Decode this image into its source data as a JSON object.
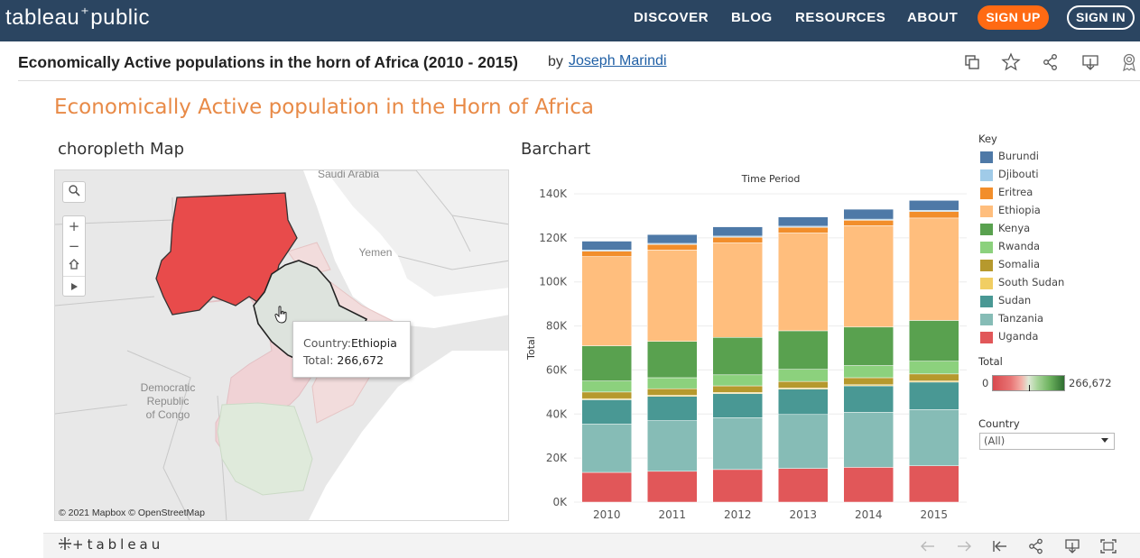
{
  "nav": {
    "logo_left": "tableau",
    "logo_right": "public",
    "links": [
      "DISCOVER",
      "BLOG",
      "RESOURCES",
      "ABOUT"
    ],
    "signup": "SIGN UP",
    "signin": "SIGN IN"
  },
  "viz": {
    "title": "Economically Active populations in the horn of Africa (2010 - 2015)",
    "by": "by",
    "author": "Joseph Marindi"
  },
  "dashboard": {
    "title": "Economically Active population in the Horn of Africa",
    "map_title": "choropleth Map",
    "bar_title": "Barchart"
  },
  "map": {
    "copyright": "© 2021 Mapbox  © OpenStreetMap",
    "labels": {
      "saudi": "Saudi Arabia",
      "yemen": "Yemen",
      "drc": "Democratic\nRepublic\nof Congo"
    },
    "tooltip": {
      "country_label": "Country:",
      "country_value": "Ethiopia",
      "total_label": "Total:",
      "total_value": "266,672"
    }
  },
  "legend": {
    "key_title": "Key",
    "items": [
      {
        "name": "Burundi",
        "color": "#4e79a7"
      },
      {
        "name": "Djibouti",
        "color": "#a0cbe8"
      },
      {
        "name": "Eritrea",
        "color": "#f28e2b"
      },
      {
        "name": "Ethiopia",
        "color": "#ffbe7d"
      },
      {
        "name": "Kenya",
        "color": "#59a14f"
      },
      {
        "name": "Rwanda",
        "color": "#8cd17d"
      },
      {
        "name": "Somalia",
        "color": "#b6992d"
      },
      {
        "name": "South Sudan",
        "color": "#f1ce63"
      },
      {
        "name": "Sudan",
        "color": "#499894"
      },
      {
        "name": "Tanzania",
        "color": "#86bcb6"
      },
      {
        "name": "Uganda",
        "color": "#e15759"
      }
    ],
    "total_title": "Total",
    "total_min": "0",
    "total_max": "266,672",
    "country_title": "Country",
    "country_value": "(All)"
  },
  "chart_data": {
    "type": "bar",
    "stacked": true,
    "title": "Time Period",
    "xlabel": "",
    "ylabel": "Total",
    "ylim": [
      0,
      140000
    ],
    "yticks": [
      "0K",
      "20K",
      "40K",
      "60K",
      "80K",
      "100K",
      "120K",
      "140K"
    ],
    "categories": [
      "2010",
      "2011",
      "2012",
      "2013",
      "2014",
      "2015"
    ],
    "series": [
      {
        "name": "Uganda",
        "color": "#e15759",
        "values": [
          13500,
          14000,
          14800,
          15300,
          15800,
          16500
        ]
      },
      {
        "name": "Tanzania",
        "color": "#86bcb6",
        "values": [
          22000,
          23000,
          23500,
          24500,
          25000,
          25500
        ]
      },
      {
        "name": "Sudan",
        "color": "#499894",
        "values": [
          11000,
          11000,
          11000,
          11500,
          12000,
          12500
        ]
      },
      {
        "name": "South Sudan",
        "color": "#f1ce63",
        "values": [
          500,
          500,
          500,
          500,
          500,
          500
        ]
      },
      {
        "name": "Somalia",
        "color": "#b6992d",
        "values": [
          3000,
          3000,
          3000,
          3000,
          3200,
          3200
        ]
      },
      {
        "name": "Rwanda",
        "color": "#8cd17d",
        "values": [
          5000,
          5000,
          5000,
          5500,
          5500,
          5800
        ]
      },
      {
        "name": "Kenya",
        "color": "#59a14f",
        "values": [
          16000,
          16500,
          17000,
          17500,
          17500,
          18500
        ]
      },
      {
        "name": "Ethiopia",
        "color": "#ffbe7d",
        "values": [
          40500,
          41500,
          43000,
          44500,
          46000,
          46500
        ]
      },
      {
        "name": "Eritrea",
        "color": "#f28e2b",
        "values": [
          2500,
          2500,
          2500,
          2500,
          2500,
          3000
        ]
      },
      {
        "name": "Djibouti",
        "color": "#a0cbe8",
        "values": [
          500,
          500,
          500,
          500,
          500,
          500
        ]
      },
      {
        "name": "Burundi",
        "color": "#4e79a7",
        "values": [
          4000,
          4000,
          4200,
          4200,
          4500,
          4500
        ]
      }
    ]
  }
}
